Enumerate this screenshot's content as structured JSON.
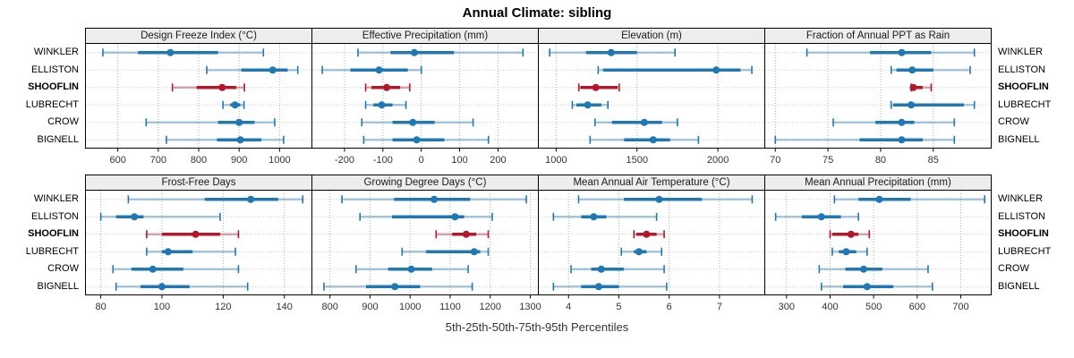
{
  "title": "Annual Climate: sibling",
  "caption": "5th-25th-50th-75th-95th Percentiles",
  "stations": [
    "WINKLER",
    "ELLISTON",
    "SHOOFLIN",
    "LUBRECHT",
    "CROW",
    "BIGNELL"
  ],
  "highlight_station": "SHOOFLIN",
  "percentile_labels": [
    "5th",
    "25th",
    "50th",
    "75th",
    "95th"
  ],
  "colors": {
    "series": "#1f78b4",
    "highlight": "#b2182b",
    "grid_vertical": "#b0b0b0",
    "grid_horizontal": "#c9c9c9",
    "strip_bg": "#ededed",
    "panel_border": "#000000",
    "tick_label": "#333333"
  },
  "layout": {
    "panel_rows": [
      [
        0,
        1,
        2,
        3
      ],
      [
        4,
        5,
        6,
        7
      ]
    ],
    "legend": "none",
    "grid": "dotted"
  },
  "chart_data": [
    {
      "type": "percentile-interval-dotplot",
      "title": "Design Freeze Index (°C)",
      "xlim": [
        520,
        1080
      ],
      "ticks": [
        600,
        700,
        800,
        900,
        1000
      ],
      "rows": [
        [
          563,
          650,
          730,
          848,
          960
        ],
        [
          820,
          905,
          983,
          1020,
          1045
        ],
        [
          735,
          795,
          858,
          893,
          913
        ],
        [
          860,
          878,
          890,
          903,
          912
        ],
        [
          670,
          848,
          900,
          938,
          988
        ],
        [
          720,
          845,
          903,
          955,
          1010
        ]
      ]
    },
    {
      "type": "percentile-interval-dotplot",
      "title": "Effective Precipitation (mm)",
      "xlim": [
        -285,
        305
      ],
      "ticks": [
        -200,
        -100,
        0,
        100,
        200
      ],
      "rows": [
        [
          -165,
          -80,
          -18,
          85,
          265
        ],
        [
          -258,
          -185,
          -110,
          -35,
          0
        ],
        [
          -145,
          -130,
          -90,
          -55,
          -30
        ],
        [
          -145,
          -125,
          -103,
          -75,
          -40
        ],
        [
          -155,
          -75,
          -22,
          35,
          135
        ],
        [
          -150,
          -75,
          -12,
          60,
          175
        ]
      ]
    },
    {
      "type": "percentile-interval-dotplot",
      "title": "Elevation (m)",
      "xlim": [
        890,
        2290
      ],
      "ticks": [
        1000,
        1500,
        2000
      ],
      "rows": [
        [
          960,
          1185,
          1340,
          1500,
          1735
        ],
        [
          1260,
          1290,
          1990,
          2140,
          2210
        ],
        [
          1140,
          1150,
          1245,
          1380,
          1390
        ],
        [
          1100,
          1125,
          1195,
          1280,
          1320
        ],
        [
          1240,
          1345,
          1545,
          1655,
          1750
        ],
        [
          1210,
          1420,
          1600,
          1705,
          1880
        ]
      ]
    },
    {
      "type": "percentile-interval-dotplot",
      "title": "Fraction of Annual PPT as Rain",
      "xlim": [
        69,
        90.5
      ],
      "ticks": [
        70,
        75,
        80,
        85
      ],
      "rows": [
        [
          73,
          79,
          82,
          84.8,
          88.9
        ],
        [
          81,
          81.5,
          83,
          85,
          88.5
        ],
        [
          82.9,
          83,
          83.1,
          84,
          84.8
        ],
        [
          81,
          81.2,
          82.9,
          87.9,
          88.9
        ],
        [
          75.5,
          79.5,
          82,
          83.2,
          87
        ],
        [
          70,
          78,
          82,
          84,
          87
        ]
      ]
    },
    {
      "type": "percentile-interval-dotplot",
      "title": "Frost-Free Days",
      "xlim": [
        75,
        149
      ],
      "ticks": [
        80,
        100,
        120,
        140
      ],
      "rows": [
        [
          89,
          114,
          129,
          138,
          146
        ],
        [
          80,
          85,
          91,
          94,
          119
        ],
        [
          95,
          100,
          111,
          119,
          125
        ],
        [
          95,
          100,
          102,
          110,
          124
        ],
        [
          84,
          90,
          97,
          107,
          125
        ],
        [
          85,
          93,
          100,
          109,
          128
        ]
      ]
    },
    {
      "type": "percentile-interval-dotplot",
      "title": "Growing Degree Days (°C)",
      "xlim": [
        755,
        1320
      ],
      "ticks": [
        800,
        900,
        1000,
        1100,
        1200,
        1300
      ],
      "rows": [
        [
          830,
          960,
          1060,
          1150,
          1290
        ],
        [
          875,
          955,
          1112,
          1135,
          1205
        ],
        [
          1065,
          1105,
          1140,
          1165,
          1195
        ],
        [
          980,
          1040,
          1160,
          1175,
          1195
        ],
        [
          865,
          945,
          1003,
          1055,
          1145
        ],
        [
          785,
          890,
          962,
          1025,
          1155
        ]
      ]
    },
    {
      "type": "percentile-interval-dotplot",
      "title": "Mean Annual Air Temperature (°C)",
      "xlim": [
        3.4,
        7.9
      ],
      "ticks": [
        4,
        5,
        6,
        7
      ],
      "rows": [
        [
          4.2,
          5.1,
          5.8,
          6.65,
          7.65
        ],
        [
          3.7,
          4.25,
          4.5,
          4.75,
          5.75
        ],
        [
          5.3,
          5.35,
          5.55,
          5.75,
          5.9
        ],
        [
          5.05,
          5.3,
          5.4,
          5.55,
          5.85
        ],
        [
          4.05,
          4.45,
          4.65,
          5.1,
          5.9
        ],
        [
          3.7,
          4.25,
          4.6,
          5.0,
          5.95
        ]
      ]
    },
    {
      "type": "percentile-interval-dotplot",
      "title": "Mean Annual Precipitation (mm)",
      "xlim": [
        250,
        770
      ],
      "ticks": [
        300,
        400,
        500,
        600,
        700
      ],
      "rows": [
        [
          410,
          465,
          513,
          585,
          755
        ],
        [
          275,
          335,
          380,
          425,
          465
        ],
        [
          400,
          405,
          448,
          465,
          490
        ],
        [
          405,
          420,
          437,
          460,
          485
        ],
        [
          375,
          435,
          477,
          520,
          625
        ],
        [
          380,
          430,
          485,
          545,
          635
        ]
      ]
    }
  ]
}
